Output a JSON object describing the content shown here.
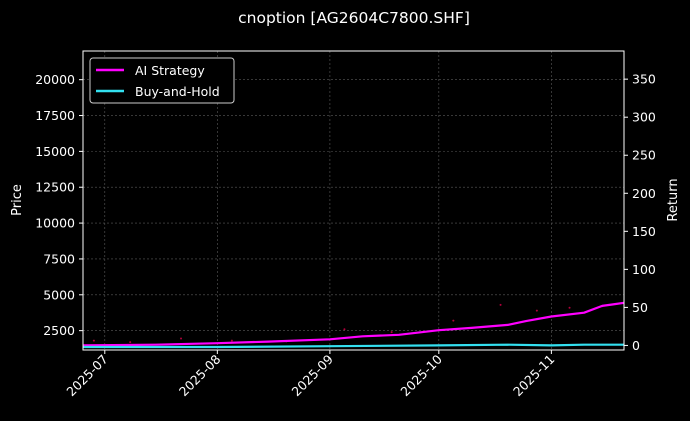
{
  "chart_data": {
    "type": "line",
    "title": "cnoption [AG2604C7800.SHF]",
    "ylabel_left": "Price",
    "ylabel_right": "Return",
    "x_ticks": [
      "2025-07",
      "2025-08",
      "2025-09",
      "2025-10",
      "2025-11"
    ],
    "x_tick_dates": [
      "2025-07-01",
      "2025-08-01",
      "2025-09-01",
      "2025-10-01",
      "2025-11-01"
    ],
    "x_range": [
      "2025-06-25",
      "2025-11-21"
    ],
    "left_axis": {
      "ylim": [
        1150,
        22000
      ],
      "ticks": [
        2500,
        5000,
        7500,
        10000,
        12500,
        15000,
        17500,
        20000
      ],
      "tick_labels": [
        "2500",
        "5000",
        "7500",
        "10000",
        "12500",
        "15000",
        "17500",
        "20000"
      ]
    },
    "right_axis": {
      "ylim": [
        -6,
        387
      ],
      "ticks": [
        0,
        50,
        100,
        150,
        200,
        250,
        300,
        350
      ],
      "tick_labels": [
        "0",
        "50",
        "100",
        "150",
        "200",
        "250",
        "300",
        "350"
      ]
    },
    "grid": true,
    "legend_position": "top-left",
    "series": [
      {
        "name": "AI Strategy",
        "axis": "right",
        "color": "#ff00ff",
        "x": [
          "2025-06-25",
          "2025-07-15",
          "2025-08-01",
          "2025-08-15",
          "2025-09-01",
          "2025-09-10",
          "2025-09-20",
          "2025-10-01",
          "2025-10-10",
          "2025-10-20",
          "2025-10-25",
          "2025-11-01",
          "2025-11-10",
          "2025-11-15",
          "2025-11-18",
          "2025-11-21"
        ],
        "y": [
          0,
          1,
          3,
          5,
          8,
          12,
          14,
          20,
          23,
          27,
          32,
          38,
          43,
          52,
          54,
          56
        ]
      },
      {
        "name": "Buy-and-Hold",
        "axis": "right",
        "color": "#33e0f0",
        "x": [
          "2025-06-25",
          "2025-07-15",
          "2025-08-01",
          "2025-09-01",
          "2025-10-01",
          "2025-10-20",
          "2025-11-01",
          "2025-11-10",
          "2025-11-21"
        ],
        "y": [
          -2,
          -2,
          -2,
          -1,
          0,
          1,
          0,
          1,
          1
        ]
      },
      {
        "name": "",
        "axis": "left",
        "color": "#b0003a",
        "type": "scatter",
        "x": [
          "2025-06-28",
          "2025-07-08",
          "2025-07-22",
          "2025-08-05",
          "2025-08-20",
          "2025-09-05",
          "2025-09-18",
          "2025-10-05",
          "2025-10-18",
          "2025-10-28",
          "2025-11-06",
          "2025-11-15"
        ],
        "y": [
          1800,
          1700,
          1950,
          1800,
          1750,
          2600,
          2400,
          3200,
          4300,
          3900,
          4100,
          4200
        ]
      }
    ]
  },
  "legend": [
    {
      "label": "AI Strategy",
      "color": "#ff00ff"
    },
    {
      "label": "Buy-and-Hold",
      "color": "#33e0f0"
    }
  ]
}
